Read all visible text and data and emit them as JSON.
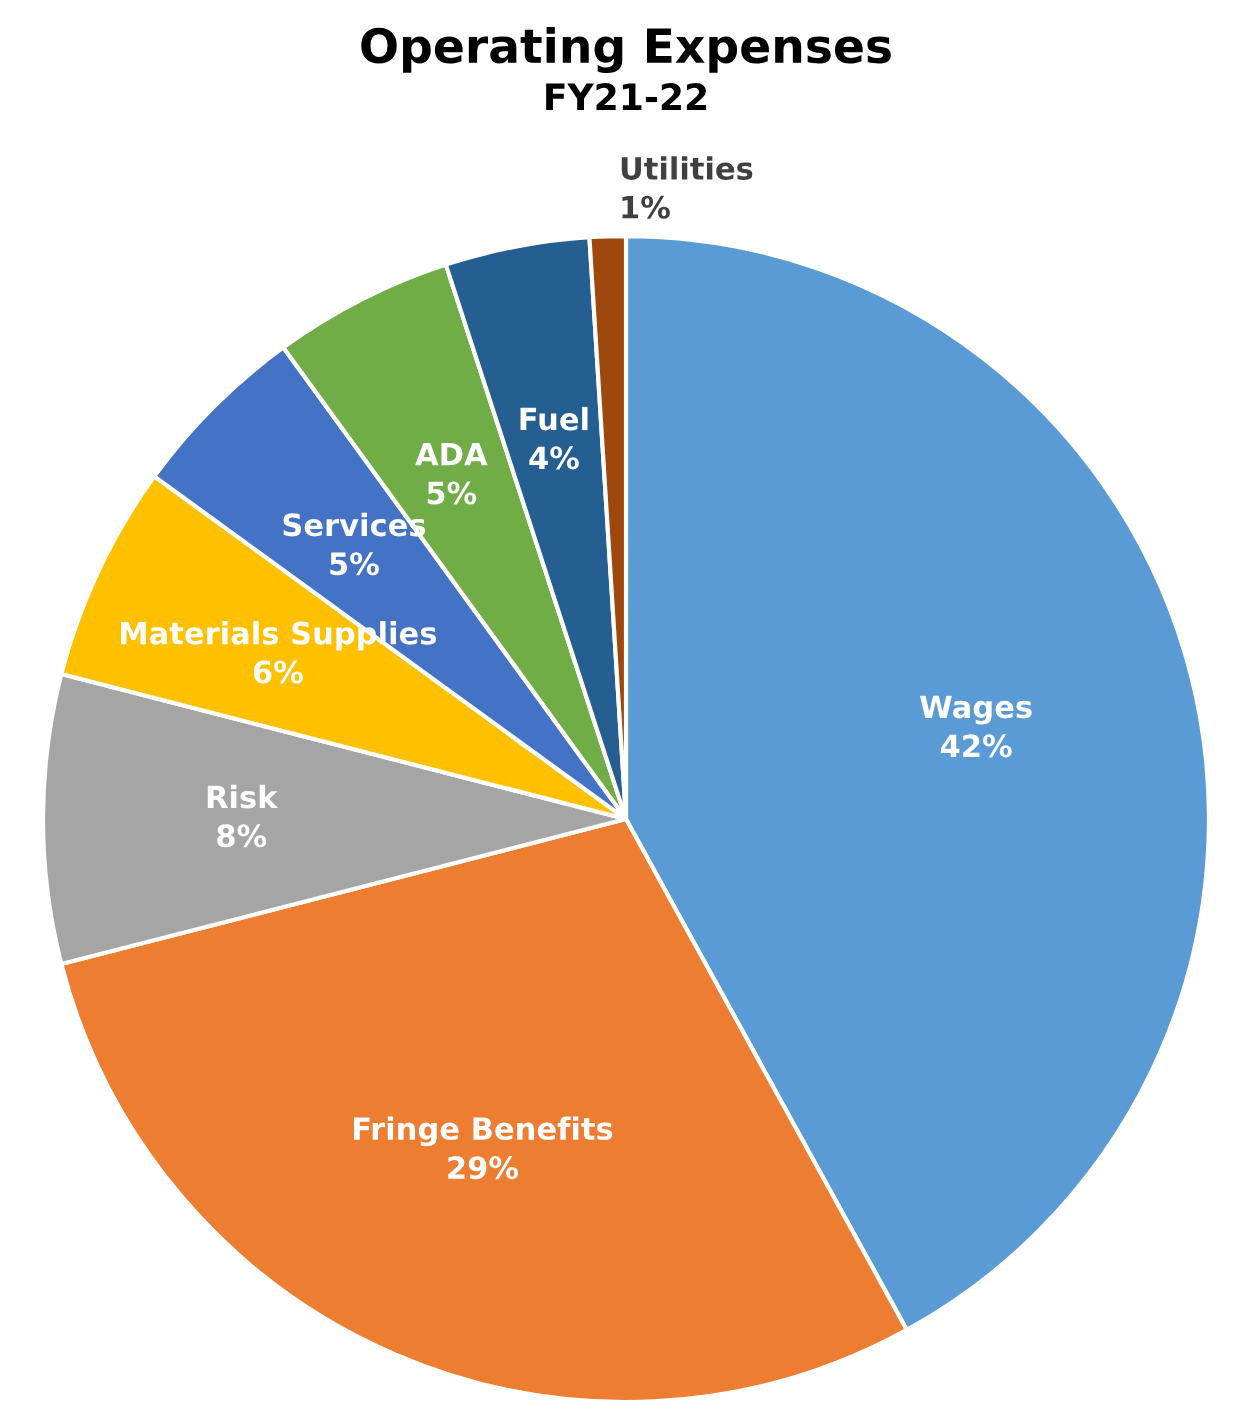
{
  "chart_data": {
    "type": "pie",
    "title": "Operating Expenses",
    "subtitle": "FY21-22",
    "categories": [
      "Wages",
      "Fringe Benefits",
      "Risk",
      "Materials Supplies",
      "Services",
      "ADA",
      "Fuel",
      "Utilities"
    ],
    "values": [
      42,
      29,
      8,
      6,
      5,
      5,
      4,
      1
    ],
    "colors": [
      "#5b9bd5",
      "#ed7d31",
      "#a5a5a5",
      "#ffc000",
      "#4472c4",
      "#70ad47",
      "#255e91",
      "#9e480e"
    ],
    "value_labels": [
      "42%",
      "29%",
      "8%",
      "6%",
      "5%",
      "5%",
      "4%",
      "1%"
    ]
  }
}
